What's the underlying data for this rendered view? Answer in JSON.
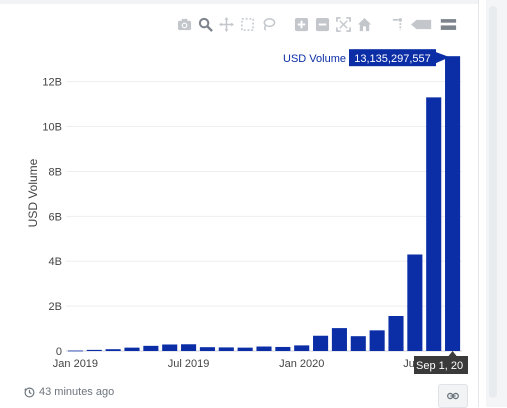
{
  "colors": {
    "bar": "#0b2ea6",
    "grid": "#eceef1",
    "axis_text": "#444444",
    "tooltip_bg": "#0b2ea6",
    "hover_label_bg": "#3a3a3a"
  },
  "modebar": {
    "icons": [
      "camera-icon",
      "zoom-icon",
      "pan-icon",
      "box-select-icon",
      "lasso-icon",
      "zoom-in-icon",
      "zoom-out-icon",
      "autoscale-icon",
      "home-icon",
      "spike-lines-icon",
      "compare-hover-icon",
      "closest-hover-icon"
    ]
  },
  "chart_data": {
    "type": "bar",
    "ylabel": "USD Volume",
    "y_tick_labels": [
      "0",
      "2B",
      "4B",
      "6B",
      "8B",
      "10B",
      "12B"
    ],
    "x_tick_labels": [
      "Jan 2019",
      "Jul 2019",
      "Jan 2020",
      "Jul 2"
    ],
    "ylim": [
      0,
      13500000000
    ],
    "grid": true,
    "categories": [
      "2019-01",
      "2019-02",
      "2019-03",
      "2019-04",
      "2019-05",
      "2019-06",
      "2019-07",
      "2019-08",
      "2019-09",
      "2019-10",
      "2019-11",
      "2019-12",
      "2020-01",
      "2020-02",
      "2020-03",
      "2020-04",
      "2020-05",
      "2020-06",
      "2020-07",
      "2020-08",
      "2020-09"
    ],
    "values": [
      20000000,
      50000000,
      80000000,
      150000000,
      230000000,
      290000000,
      300000000,
      170000000,
      160000000,
      150000000,
      200000000,
      180000000,
      250000000,
      680000000,
      1020000000,
      660000000,
      920000000,
      1560000000,
      4300000000,
      11300000000,
      13135297557
    ],
    "hover": {
      "series_label": "USD Volume",
      "value_text": "13,135,297,557",
      "x_label": "Sep 1, 20"
    }
  },
  "footer": {
    "clock_icon": "clock-icon",
    "timestamp": "43 minutes ago",
    "link_icon": "link-icon"
  }
}
